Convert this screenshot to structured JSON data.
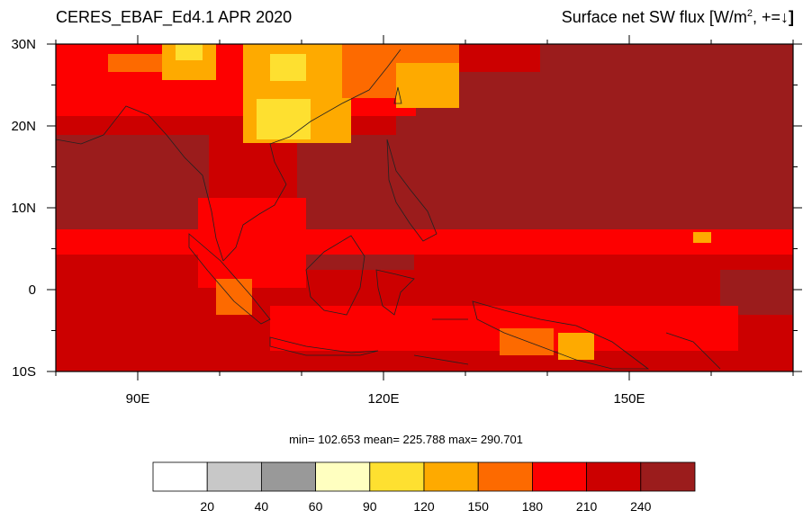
{
  "header": {
    "title_left": "CERES_EBAF_Ed4.1 APR 2020",
    "title_right_main": "Surface net SW flux [W/m",
    "title_right_sup": "2",
    "title_right_tail": ", +=",
    "title_right_arrow": "↓",
    "title_right_bracket": "]"
  },
  "stats_text": "min= 102.653  mean= 225.788  max= 290.701",
  "map": {
    "lon_range": [
      80,
      170
    ],
    "lat_range": [
      -10,
      30
    ],
    "lat_ticks": [
      {
        "value": 30,
        "label": "30N"
      },
      {
        "value": 20,
        "label": "20N"
      },
      {
        "value": 10,
        "label": "10N"
      },
      {
        "value": 0,
        "label": "0"
      },
      {
        "value": -10,
        "label": "10S"
      }
    ],
    "lon_ticks": [
      {
        "value": 90,
        "label": "90E"
      },
      {
        "value": 120,
        "label": "120E"
      },
      {
        "value": 150,
        "label": "150E"
      }
    ]
  },
  "colorbar": {
    "colors": [
      "#ffffff",
      "#c8c8c8",
      "#999999",
      "#ffffc0",
      "#fee030",
      "#feaa00",
      "#fd6a00",
      "#fd0000",
      "#cc0000",
      "#9b1c1c"
    ],
    "labels": [
      "20",
      "40",
      "60",
      "90",
      "120",
      "150",
      "180",
      "210",
      "240"
    ]
  }
}
